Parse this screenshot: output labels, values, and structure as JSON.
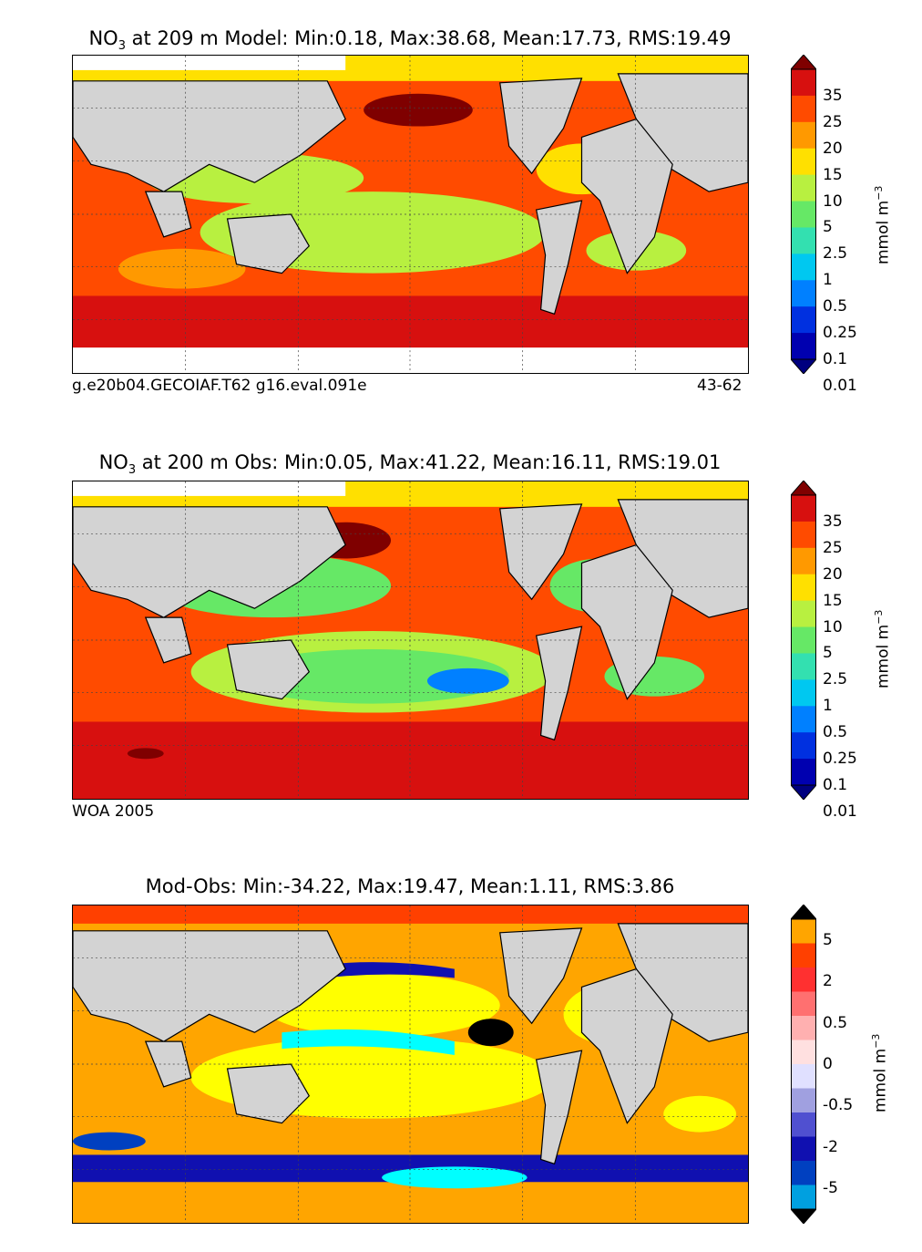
{
  "panels": [
    {
      "id": "model",
      "title_prefix": "NO",
      "title_sub": "3",
      "title_rest": " at 209 m Model: Min:0.18, Max:38.68, Mean:17.73, RMS:19.49",
      "caption_left": "g.e20b04.GECOIAF.T62 g16.eval.091e",
      "caption_right": "43-62",
      "colorbar": {
        "ticks": [
          "35",
          "25",
          "20",
          "15",
          "10",
          "5",
          "2.5",
          "1",
          "0.5",
          "0.25",
          "0.1",
          "0.01"
        ],
        "colors": [
          "#7f0000",
          "#d7100f",
          "#ff4b00",
          "#ff9900",
          "#ffe000",
          "#b8f040",
          "#66e866",
          "#33e0b0",
          "#00c8f0",
          "#0080ff",
          "#0030e0",
          "#0000b0",
          "#00007f"
        ],
        "unit": "mmol m",
        "unit_sup": "−3"
      },
      "contours": [
        {
          "level": 15,
          "color": "#ffe000"
        },
        {
          "level": 25,
          "color": "#ff4b00"
        },
        {
          "level": 35,
          "color": "#7f0000"
        }
      ]
    },
    {
      "id": "obs",
      "title_prefix": "NO",
      "title_sub": "3",
      "title_rest": " at 200 m Obs: Min:0.05, Max:41.22, Mean:16.11, RMS:19.01",
      "caption_left": "WOA 2005",
      "caption_right": "",
      "colorbar": {
        "ticks": [
          "35",
          "25",
          "20",
          "15",
          "10",
          "5",
          "2.5",
          "1",
          "0.5",
          "0.25",
          "0.1",
          "0.01"
        ],
        "colors": [
          "#7f0000",
          "#d7100f",
          "#ff4b00",
          "#ff9900",
          "#ffe000",
          "#b8f040",
          "#66e866",
          "#33e0b0",
          "#00c8f0",
          "#0080ff",
          "#0030e0",
          "#0000b0",
          "#00007f"
        ],
        "unit": "mmol m",
        "unit_sup": "−3"
      }
    },
    {
      "id": "diff",
      "title_prefix": "",
      "title_sub": "",
      "title_rest": "Mod-Obs: Min:-34.22, Max:19.47, Mean:1.11, RMS:3.86",
      "caption_left": "",
      "caption_right": "",
      "colorbar": {
        "ticks": [
          "5",
          "2",
          "0.5",
          "0",
          "-0.5",
          "-2",
          "-5"
        ],
        "colors": [
          "#ffff00",
          "#ffa500",
          "#ff4000",
          "#ff3030",
          "#ff7070",
          "#ffb0b0",
          "#ffe0e0",
          "#e0e0ff",
          "#a0a0e0",
          "#5050d0",
          "#1010b0",
          "#0040c0",
          "#00a0e0",
          "#00ffff"
        ],
        "unit": "mmol m",
        "unit_sup": "−3"
      }
    }
  ],
  "land_color": "#d3d3d3",
  "missing_color": "#ffffff"
}
